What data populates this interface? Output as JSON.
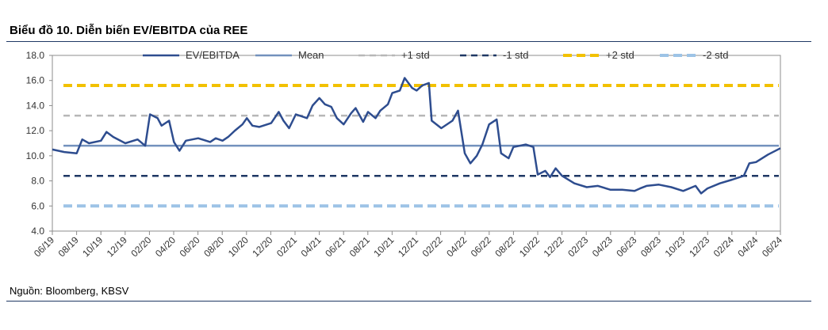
{
  "title": "Biểu đồ 10. Diễn biến EV/EBITDA của REE",
  "source": "Nguồn: Bloomberg, KBSV",
  "chart_data": {
    "type": "line",
    "ylim": [
      4.0,
      18.0
    ],
    "yticks": [
      "18.0",
      "16.0",
      "14.0",
      "12.0",
      "10.0",
      "8.0",
      "6.0",
      "4.0"
    ],
    "x_start": "2019-06",
    "x_end": "2024-06",
    "xticks": [
      "06/19",
      "08/19",
      "10/19",
      "12/19",
      "02/20",
      "04/20",
      "06/20",
      "08/20",
      "10/20",
      "12/20",
      "02/21",
      "04/21",
      "06/21",
      "08/21",
      "10/21",
      "12/21",
      "02/22",
      "04/22",
      "06/22",
      "08/22",
      "10/22",
      "12/22",
      "02/23",
      "04/23",
      "06/23",
      "08/23",
      "10/23",
      "12/23",
      "02/24",
      "04/24",
      "06/24"
    ],
    "series": [
      {
        "name": "EV/EBITDA",
        "color": "#2e4d8f",
        "style": "solid",
        "points": [
          [
            "2019-06",
            10.5
          ],
          [
            "2019-07",
            10.3
          ],
          [
            "2019-08",
            10.2
          ],
          [
            "2019-08-15",
            11.3
          ],
          [
            "2019-09",
            11.0
          ],
          [
            "2019-10",
            11.2
          ],
          [
            "2019-10-15",
            11.9
          ],
          [
            "2019-11",
            11.5
          ],
          [
            "2019-12",
            11.0
          ],
          [
            "2020-01",
            11.3
          ],
          [
            "2020-01-20",
            10.8
          ],
          [
            "2020-02",
            13.3
          ],
          [
            "2020-02-20",
            13.0
          ],
          [
            "2020-03",
            12.4
          ],
          [
            "2020-03-20",
            12.8
          ],
          [
            "2020-04",
            11.1
          ],
          [
            "2020-04-15",
            10.4
          ],
          [
            "2020-05",
            11.2
          ],
          [
            "2020-06",
            11.4
          ],
          [
            "2020-07",
            11.1
          ],
          [
            "2020-07-15",
            11.4
          ],
          [
            "2020-08",
            11.2
          ],
          [
            "2020-08-15",
            11.5
          ],
          [
            "2020-09",
            12.0
          ],
          [
            "2020-09-20",
            12.5
          ],
          [
            "2020-10",
            13.0
          ],
          [
            "2020-10-15",
            12.4
          ],
          [
            "2020-11",
            12.3
          ],
          [
            "2020-12",
            12.6
          ],
          [
            "2020-12-20",
            13.5
          ],
          [
            "2021-01",
            12.8
          ],
          [
            "2021-01-15",
            12.2
          ],
          [
            "2021-02",
            13.3
          ],
          [
            "2021-03",
            13.0
          ],
          [
            "2021-03-15",
            14.0
          ],
          [
            "2021-04",
            14.6
          ],
          [
            "2021-04-15",
            14.1
          ],
          [
            "2021-05",
            13.9
          ],
          [
            "2021-05-15",
            13.0
          ],
          [
            "2021-06",
            12.5
          ],
          [
            "2021-06-20",
            13.4
          ],
          [
            "2021-07",
            13.8
          ],
          [
            "2021-07-20",
            12.7
          ],
          [
            "2021-08",
            13.5
          ],
          [
            "2021-08-20",
            13.0
          ],
          [
            "2021-09",
            13.6
          ],
          [
            "2021-09-20",
            14.1
          ],
          [
            "2021-10",
            15.0
          ],
          [
            "2021-10-20",
            15.2
          ],
          [
            "2021-11",
            16.2
          ],
          [
            "2021-11-20",
            15.4
          ],
          [
            "2021-12",
            15.2
          ],
          [
            "2021-12-15",
            15.6
          ],
          [
            "2022-01",
            15.8
          ],
          [
            "2022-01-08",
            12.8
          ],
          [
            "2022-02",
            12.2
          ],
          [
            "2022-03",
            12.8
          ],
          [
            "2022-03-15",
            13.6
          ],
          [
            "2022-04",
            10.2
          ],
          [
            "2022-04-15",
            9.4
          ],
          [
            "2022-05",
            10.0
          ],
          [
            "2022-05-15",
            10.9
          ],
          [
            "2022-06",
            12.5
          ],
          [
            "2022-06-20",
            12.9
          ],
          [
            "2022-07",
            10.2
          ],
          [
            "2022-07-20",
            9.8
          ],
          [
            "2022-08",
            10.7
          ],
          [
            "2022-09",
            10.9
          ],
          [
            "2022-09-20",
            10.7
          ],
          [
            "2022-10",
            8.5
          ],
          [
            "2022-10-20",
            8.8
          ],
          [
            "2022-11",
            8.3
          ],
          [
            "2022-11-15",
            9.0
          ],
          [
            "2022-12",
            8.4
          ],
          [
            "2023-01",
            7.8
          ],
          [
            "2023-02",
            7.5
          ],
          [
            "2023-03",
            7.6
          ],
          [
            "2023-04",
            7.3
          ],
          [
            "2023-05",
            7.3
          ],
          [
            "2023-06",
            7.2
          ],
          [
            "2023-06-15",
            7.4
          ],
          [
            "2023-07",
            7.6
          ],
          [
            "2023-08",
            7.7
          ],
          [
            "2023-09",
            7.5
          ],
          [
            "2023-10",
            7.2
          ],
          [
            "2023-11",
            7.6
          ],
          [
            "2023-11-15",
            7.0
          ],
          [
            "2023-12",
            7.4
          ],
          [
            "2024-01",
            7.8
          ],
          [
            "2024-02",
            8.1
          ],
          [
            "2024-03",
            8.4
          ],
          [
            "2024-03-15",
            9.4
          ],
          [
            "2024-04",
            9.5
          ],
          [
            "2024-05",
            10.1
          ],
          [
            "2024-06",
            10.6
          ]
        ]
      },
      {
        "name": "Mean",
        "value": 10.8,
        "color": "#7391bd",
        "style": "solid"
      },
      {
        "name": "+1 std",
        "value": 13.2,
        "color": "#b7b7b7",
        "style": "dashed"
      },
      {
        "name": "-1 std",
        "value": 8.4,
        "color": "#1f3864",
        "style": "dashed"
      },
      {
        "name": "+2 std",
        "value": 15.6,
        "color": "#f2c100",
        "style": "dashed"
      },
      {
        "name": "-2 std",
        "value": 6.0,
        "color": "#9dc3e6",
        "style": "dashed"
      }
    ]
  }
}
